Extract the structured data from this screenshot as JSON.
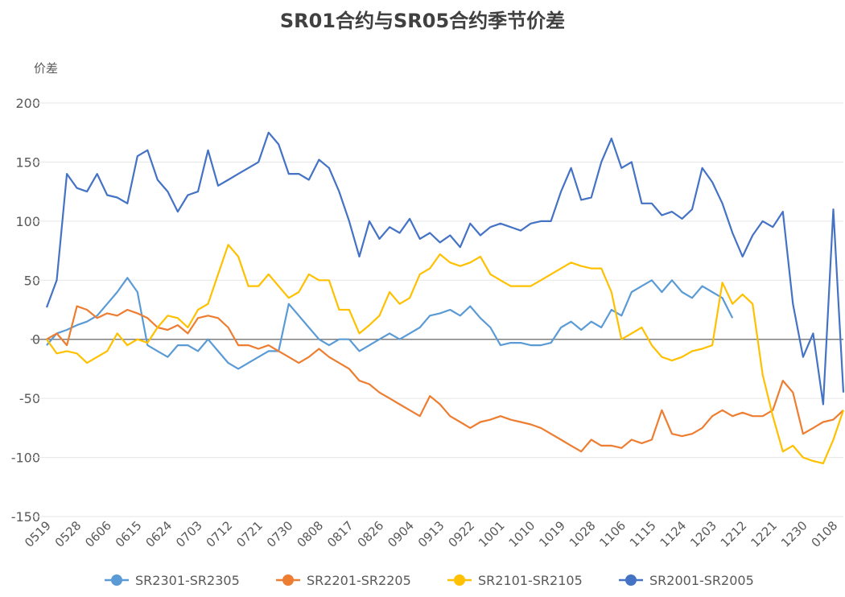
{
  "chart_data": {
    "type": "line",
    "title": "SR01合约与SR05合约季节价差",
    "y_label": "价差",
    "categories": [
      "0519",
      null,
      null,
      "0528",
      null,
      null,
      "0606",
      null,
      null,
      "0615",
      null,
      null,
      "0624",
      null,
      null,
      "0703",
      null,
      null,
      "0712",
      null,
      null,
      "0721",
      null,
      null,
      "0730",
      null,
      null,
      "0808",
      null,
      null,
      "0817",
      null,
      null,
      "0826",
      null,
      null,
      "0904",
      null,
      null,
      "0913",
      null,
      null,
      "0922",
      null,
      null,
      "1001",
      null,
      null,
      "1010",
      null,
      null,
      "1019",
      null,
      null,
      "1028",
      null,
      null,
      "1106",
      null,
      null,
      "1115",
      null,
      null,
      "1124",
      null,
      null,
      "1203",
      null,
      null,
      "1212",
      null,
      null,
      "1221",
      null,
      null,
      "1230",
      null,
      null,
      "0108",
      null
    ],
    "series": [
      {
        "name": "SR2301-SR2305",
        "color": "#5b9bd5",
        "values": [
          -5,
          5,
          8,
          12,
          15,
          20,
          30,
          40,
          52,
          40,
          -5,
          -10,
          -15,
          -5,
          -5,
          -10,
          0,
          -10,
          -20,
          -25,
          -20,
          -15,
          -10,
          -10,
          30,
          20,
          10,
          0,
          -5,
          0,
          0,
          -10,
          -5,
          0,
          5,
          0,
          5,
          10,
          20,
          22,
          25,
          20,
          28,
          18,
          10,
          -5,
          -3,
          -3,
          -5,
          -5,
          -3,
          10,
          15,
          8,
          15,
          10,
          25,
          20,
          40,
          45,
          50,
          40,
          50,
          40,
          35,
          45,
          40,
          35,
          18,
          null,
          null,
          null,
          null,
          null,
          null,
          null,
          null,
          null,
          null,
          null
        ]
      },
      {
        "name": "SR2201-SR2205",
        "color": "#ed7d31",
        "values": [
          0,
          5,
          -5,
          28,
          25,
          18,
          22,
          20,
          25,
          22,
          18,
          10,
          8,
          12,
          5,
          18,
          20,
          18,
          10,
          -5,
          -5,
          -8,
          -5,
          -10,
          -15,
          -20,
          -15,
          -8,
          -15,
          -20,
          -25,
          -35,
          -38,
          -45,
          -50,
          -55,
          -60,
          -65,
          -48,
          -55,
          -65,
          -70,
          -75,
          -70,
          -68,
          -65,
          -68,
          -70,
          -72,
          -75,
          -80,
          -85,
          -90,
          -95,
          -85,
          -90,
          -90,
          -92,
          -85,
          -88,
          -85,
          -60,
          -80,
          -82,
          -80,
          -75,
          -65,
          -60,
          -65,
          -62,
          -65,
          -65,
          -60,
          -35,
          -45,
          -80,
          -75,
          -70,
          -68,
          -60
        ]
      },
      {
        "name": "SR2101-SR2105",
        "color": "#ffc000",
        "values": [
          0,
          -12,
          -10,
          -12,
          -20,
          -15,
          -10,
          5,
          -5,
          0,
          -3,
          10,
          20,
          18,
          10,
          25,
          30,
          55,
          80,
          70,
          45,
          45,
          55,
          45,
          35,
          40,
          55,
          50,
          50,
          25,
          25,
          5,
          12,
          20,
          40,
          30,
          35,
          55,
          60,
          72,
          65,
          62,
          65,
          70,
          55,
          50,
          45,
          45,
          45,
          50,
          55,
          60,
          65,
          62,
          60,
          60,
          40,
          0,
          5,
          10,
          -5,
          -15,
          -18,
          -15,
          -10,
          -8,
          -5,
          48,
          30,
          38,
          30,
          -30,
          -65,
          -95,
          -90,
          -100,
          -103,
          -105,
          -85,
          -60
        ]
      },
      {
        "name": "SR2001-SR2005",
        "color": "#4472c4",
        "values": [
          27,
          50,
          140,
          128,
          125,
          140,
          122,
          120,
          115,
          155,
          160,
          135,
          125,
          108,
          122,
          125,
          160,
          130,
          135,
          140,
          145,
          150,
          175,
          165,
          140,
          140,
          135,
          152,
          145,
          125,
          100,
          70,
          100,
          85,
          95,
          90,
          102,
          85,
          90,
          82,
          88,
          78,
          98,
          88,
          95,
          98,
          95,
          92,
          98,
          100,
          100,
          125,
          145,
          118,
          120,
          150,
          170,
          145,
          150,
          115,
          115,
          105,
          108,
          102,
          110,
          145,
          133,
          115,
          90,
          70,
          88,
          100,
          95,
          108,
          30,
          -15,
          5,
          -55,
          110,
          -45
        ]
      }
    ],
    "ylim": [
      -150,
      200
    ],
    "yticks": [
      -150,
      -100,
      -50,
      0,
      50,
      100,
      150,
      200
    ],
    "grid": true,
    "legend": "bottom"
  }
}
